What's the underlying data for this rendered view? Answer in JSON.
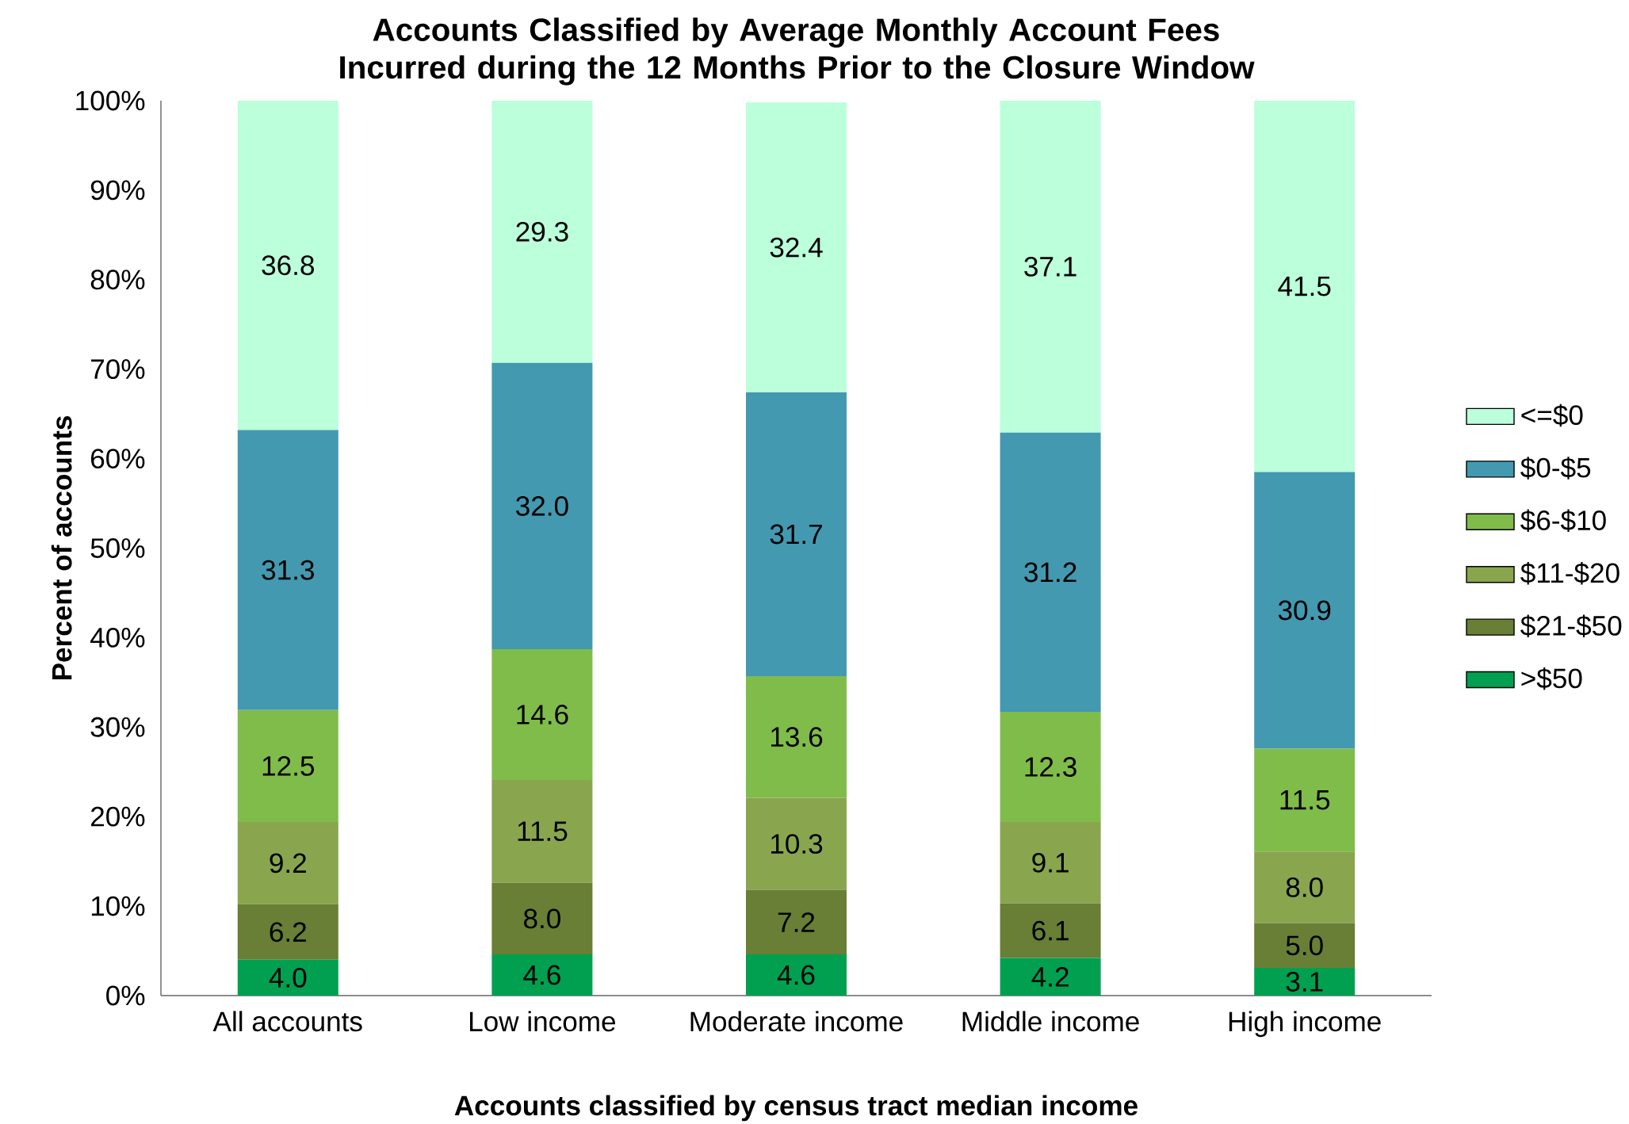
{
  "chart_data": {
    "type": "bar",
    "stacked": true,
    "title": "Accounts Classified by Average Monthly Account Fees Incurred during the 12 Months Prior to the Closure Window",
    "xlabel": "Accounts classified by census tract median income",
    "ylabel": "Percent of accounts",
    "categories": [
      "All accounts",
      "Low income",
      "Moderate income",
      "Middle income",
      "High income"
    ],
    "series": [
      {
        "name": ">$50",
        "color": "#00a050",
        "values": [
          4.0,
          4.6,
          4.6,
          4.2,
          3.1
        ],
        "value_labels": [
          "4.0",
          "4.6",
          "4.6",
          "4.2",
          "3.1"
        ]
      },
      {
        "name": "$21-$50",
        "color": "#687f35",
        "values": [
          6.2,
          8.0,
          7.2,
          6.1,
          5.0
        ],
        "value_labels": [
          "6.2",
          "8.0",
          "7.2",
          "6.1",
          "5.0"
        ]
      },
      {
        "name": "$11-$20",
        "color": "#89a64f",
        "values": [
          9.2,
          11.5,
          10.3,
          9.1,
          8.0
        ],
        "value_labels": [
          "9.2",
          "11.5",
          "10.3",
          "9.1",
          "8.0"
        ]
      },
      {
        "name": "$6-$10",
        "color": "#80bc4a",
        "values": [
          12.5,
          14.6,
          13.6,
          12.3,
          11.5
        ],
        "value_labels": [
          "12.5",
          "14.6",
          "13.6",
          "12.3",
          "11.5"
        ]
      },
      {
        "name": "$0-$5",
        "color": "#4399b0",
        "values": [
          31.3,
          32.0,
          31.7,
          31.2,
          30.9
        ],
        "value_labels": [
          "31.3",
          "32.0",
          "31.7",
          "31.2",
          "30.9"
        ]
      },
      {
        "name": "<=$0",
        "color": "#bbffdb",
        "values": [
          36.8,
          29.3,
          32.4,
          37.1,
          41.5
        ],
        "value_labels": [
          "36.8",
          "29.3",
          "32.4",
          "37.1",
          "41.5"
        ]
      }
    ],
    "ylim": [
      0,
      100
    ],
    "yticks": [
      {
        "value": 0,
        "label": "0%"
      },
      {
        "value": 10,
        "label": "10%"
      },
      {
        "value": 20,
        "label": "20%"
      },
      {
        "value": 30,
        "label": "30%"
      },
      {
        "value": 40,
        "label": "40%"
      },
      {
        "value": 50,
        "label": "50%"
      },
      {
        "value": 60,
        "label": "60%"
      },
      {
        "value": 70,
        "label": "70%"
      },
      {
        "value": 80,
        "label": "80%"
      },
      {
        "value": 90,
        "label": "90%"
      },
      {
        "value": 100,
        "label": "100%"
      }
    ],
    "grid": false,
    "legend": "right"
  }
}
